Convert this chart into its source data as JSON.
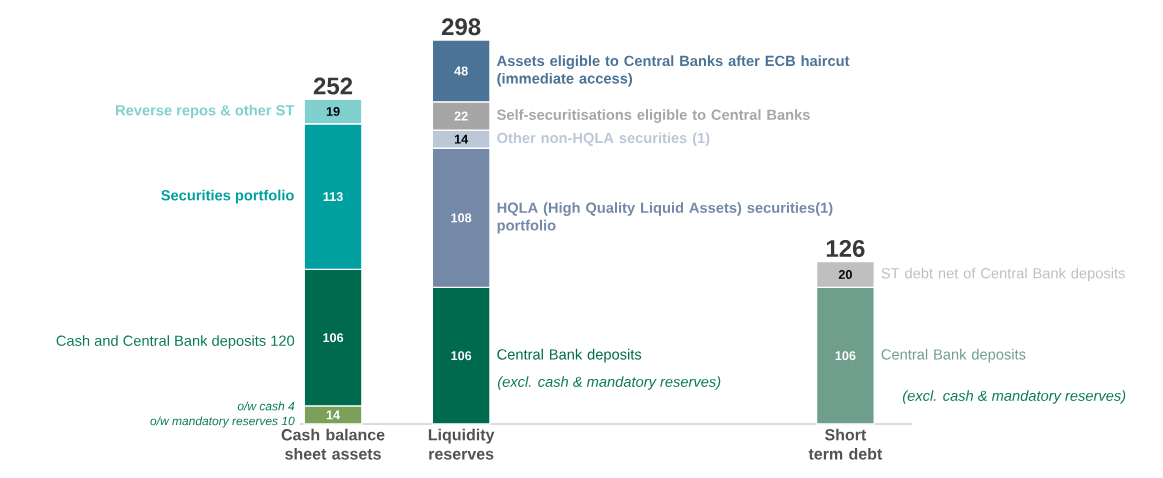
{
  "chart_data": {
    "type": "bar",
    "stacked": true,
    "data_labels": true,
    "categories": [
      "Cash balance sheet assets",
      "Liquidity reserves",
      null,
      null,
      "Short term debt"
    ],
    "series": [
      {
        "color": "#7aa05a",
        "values": [
          14,
          null,
          null,
          null,
          null
        ]
      },
      {
        "name": "Central Bank deposits",
        "color": "#006a4e",
        "values": [
          106,
          106,
          null,
          null,
          null
        ]
      },
      {
        "name": "Securities portfolio",
        "color": "#00a0a0",
        "values": [
          113,
          null,
          null,
          null,
          null
        ]
      },
      {
        "name": "Reverse repos & other ST",
        "color": "#80d0d0",
        "values": [
          19,
          null,
          null,
          null,
          null
        ]
      },
      {
        "name": "HQLA (High Quality Liquid Assets) securities(1) portfolio",
        "color": "#7489a8",
        "values": [
          null,
          108,
          null,
          null,
          null
        ]
      },
      {
        "name": "Other non-HQLA securities (1)",
        "color": "#bcc8d8",
        "values": [
          null,
          14,
          null,
          null,
          null
        ]
      },
      {
        "name": "Self-securitisations eligible to Central Banks",
        "color": "#a6a6a6",
        "values": [
          null,
          22,
          null,
          null,
          null
        ]
      },
      {
        "name": "Assets eligible to Central Banks after ECB haircut (immediate access)",
        "color": "#4a7396",
        "values": [
          null,
          48,
          null,
          null,
          null
        ]
      },
      {
        "name": "Central Bank deposits",
        "color": "#6f9f8c",
        "values": [
          null,
          null,
          null,
          null,
          106
        ]
      },
      {
        "name": "ST debt net of Central Bank deposits",
        "color": "#bfbfbf",
        "values": [
          null,
          null,
          null,
          null,
          20
        ]
      }
    ],
    "totals": [
      "252",
      "298",
      null,
      null,
      "126"
    ],
    "annotations": [
      "Cash and Central Bank deposits 120",
      "o/w cash 4",
      "o/w mandatory reserves 10",
      "(excl. cash & mandatory reserves)",
      "(excl. cash & mandatory reserves)"
    ]
  }
}
